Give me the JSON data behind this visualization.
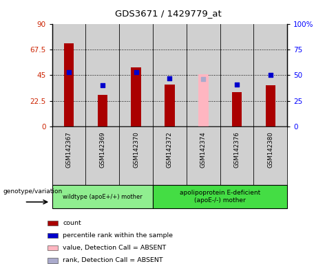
{
  "title": "GDS3671 / 1429779_at",
  "samples": [
    "GSM142367",
    "GSM142369",
    "GSM142370",
    "GSM142372",
    "GSM142374",
    "GSM142376",
    "GSM142380"
  ],
  "count_values": [
    73,
    28,
    52,
    37,
    0,
    30,
    36
  ],
  "count_absent": [
    false,
    false,
    false,
    false,
    true,
    false,
    false
  ],
  "absent_count_values": [
    0,
    0,
    0,
    0,
    46,
    0,
    0
  ],
  "percentile_values": [
    53,
    40,
    53,
    47,
    46,
    41,
    50
  ],
  "percentile_absent": [
    false,
    false,
    false,
    false,
    true,
    false,
    false
  ],
  "ylim_left": [
    0,
    90
  ],
  "ylim_right": [
    0,
    100
  ],
  "yticks_left": [
    0,
    22.5,
    45,
    67.5,
    90
  ],
  "ytick_labels_left": [
    "0",
    "22.5",
    "45",
    "67.5",
    "90"
  ],
  "yticks_right": [
    0,
    25,
    50,
    75,
    100
  ],
  "ytick_labels_right": [
    "0",
    "25",
    "50",
    "75",
    "100%"
  ],
  "group1_count": 3,
  "group2_count": 4,
  "group1_label": "wildtype (apoE+/+) mother",
  "group2_label": "apolipoprotein E-deficient\n(apoE-/-) mother",
  "group1_color": "#90EE90",
  "group2_color": "#44DD44",
  "bar_color_present": "#AA0000",
  "bar_color_absent": "#FFB6C1",
  "dot_color_present": "#0000CC",
  "dot_color_absent": "#AAAACC",
  "col_bg": "#D0D0D0",
  "legend_items": [
    {
      "color": "#AA0000",
      "label": "count"
    },
    {
      "color": "#0000CC",
      "label": "percentile rank within the sample"
    },
    {
      "color": "#FFB6C1",
      "label": "value, Detection Call = ABSENT"
    },
    {
      "color": "#AAAACC",
      "label": "rank, Detection Call = ABSENT"
    }
  ],
  "genotype_label": "genotype/variation"
}
